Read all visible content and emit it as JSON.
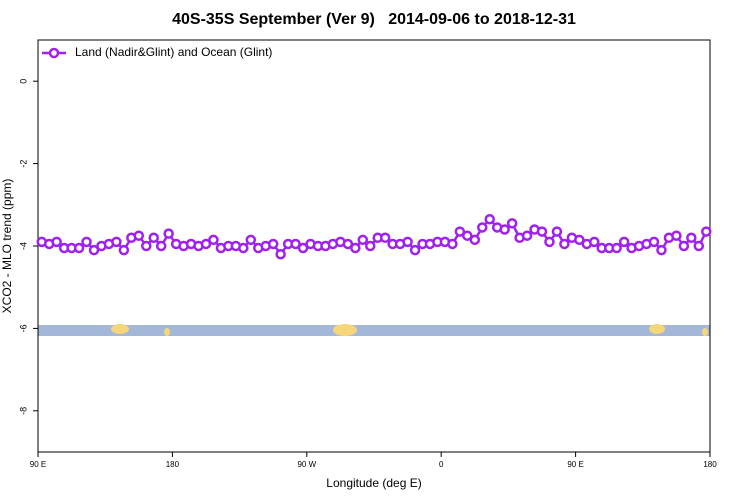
{
  "chart_data": {
    "type": "line",
    "title": "40S-35S September (Ver 9)   2014-09-06 to 2018-12-31",
    "x_label": "Longitude (deg E)",
    "y_label": "XCO2 - MLO trend (ppm)",
    "xlim": [
      90,
      540
    ],
    "xticks": [
      {
        "value": 90,
        "label": "90 E"
      },
      180,
      {
        "value": 270,
        "label": "90 W"
      },
      {
        "value": 360,
        "label": "0"
      },
      {
        "value": 450,
        "label": "90 E"
      },
      {
        "value": 540,
        "label": "180"
      }
    ],
    "ylim": [
      -9,
      1
    ],
    "yticks": [
      0,
      -2,
      -4,
      -6,
      -8
    ],
    "legend": "top-left",
    "x": [
      92.5,
      97.5,
      102.5,
      107.5,
      112.5,
      117.5,
      122.5,
      127.5,
      132.5,
      137.5,
      142.5,
      147.5,
      152.5,
      157.5,
      162.5,
      167.5,
      172.5,
      177.5,
      182.5,
      187.5,
      192.5,
      197.5,
      202.5,
      207.5,
      212.5,
      217.5,
      222.5,
      227.5,
      232.5,
      237.5,
      242.5,
      247.5,
      252.5,
      257.5,
      262.5,
      267.5,
      272.5,
      277.5,
      282.5,
      287.5,
      292.5,
      297.5,
      302.5,
      307.5,
      312.5,
      317.5,
      322.5,
      327.5,
      332.5,
      337.5,
      342.5,
      347.5,
      352.5,
      357.5,
      362.5,
      367.5,
      372.5,
      377.5,
      382.5,
      387.5,
      392.5,
      397.5,
      402.5,
      407.5,
      412.5,
      417.5,
      422.5,
      427.5,
      432.5,
      437.5,
      442.5,
      447.5,
      452.5,
      457.5,
      462.5,
      467.5,
      472.5,
      477.5,
      482.5,
      487.5,
      492.5,
      497.5,
      502.5,
      507.5,
      512.5,
      517.5,
      522.5,
      527.5,
      532.5,
      537.5
    ],
    "series": [
      {
        "name": "Land (Nadir&Glint) and Ocean (Glint)",
        "color": "#a020f0",
        "values": [
          -3.9,
          -3.95,
          -3.9,
          -4.05,
          -4.05,
          -4.05,
          -3.9,
          -4.1,
          -4.0,
          -3.95,
          -3.9,
          -4.1,
          -3.8,
          -3.75,
          -4.0,
          -3.8,
          -4.0,
          -3.7,
          -3.95,
          -4.0,
          -3.95,
          -4.0,
          -3.95,
          -3.85,
          -4.05,
          -4.0,
          -4.0,
          -4.05,
          -3.85,
          -4.05,
          -4.0,
          -3.95,
          -4.2,
          -3.95,
          -3.95,
          -4.05,
          -3.95,
          -4.0,
          -4.0,
          -3.95,
          -3.9,
          -3.95,
          -4.05,
          -3.85,
          -4.0,
          -3.8,
          -3.8,
          -3.95,
          -3.95,
          -3.9,
          -4.1,
          -3.95,
          -3.95,
          -3.9,
          -3.9,
          -3.95,
          -3.65,
          -3.75,
          -3.85,
          -3.55,
          -3.35,
          -3.55,
          -3.6,
          -3.45,
          -3.8,
          -3.75,
          -3.6,
          -3.65,
          -3.9,
          -3.65,
          -3.95,
          -3.8,
          -3.85,
          -3.95,
          -3.9,
          -4.05,
          -4.05,
          -4.05,
          -3.9,
          -4.05,
          -4.0,
          -3.95,
          -3.9,
          -4.1,
          -3.8,
          -3.75,
          -4.0,
          -3.8,
          -4.0,
          -3.65
        ]
      }
    ]
  }
}
